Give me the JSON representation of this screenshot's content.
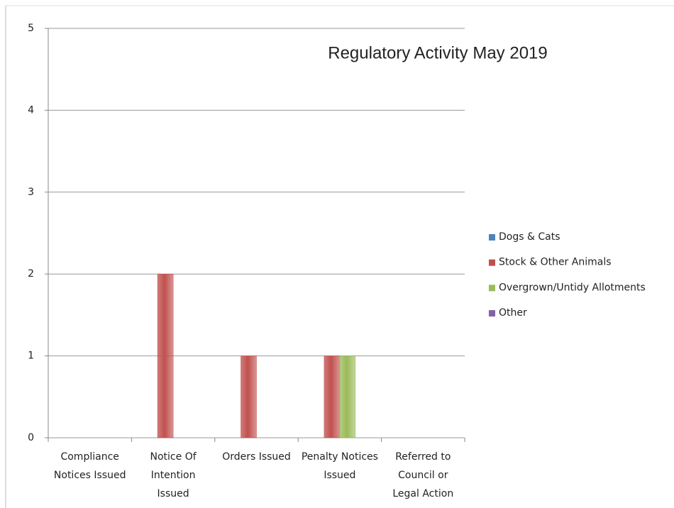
{
  "chart_data": {
    "type": "bar",
    "title": "Regulatory Activity May 2019",
    "categories": [
      "Compliance Notices Issued",
      "Notice Of Intention Issued",
      "Orders Issued",
      "Penalty Notices Issued",
      "Referred to Council or Legal Action"
    ],
    "series": [
      {
        "name": "Dogs & Cats",
        "color": "#4f81bd",
        "values": [
          0,
          0,
          0,
          0,
          0
        ]
      },
      {
        "name": "Stock & Other Animals",
        "color": "#c0504d",
        "values": [
          0,
          2,
          1,
          1,
          0
        ]
      },
      {
        "name": "Overgrown/Untidy Allotments",
        "color": "#9bbb59",
        "values": [
          0,
          0,
          0,
          1,
          0
        ]
      },
      {
        "name": "Other",
        "color": "#8064a2",
        "values": [
          0,
          0,
          0,
          0,
          0
        ]
      }
    ],
    "ylim": [
      0,
      5
    ],
    "yticks": [
      0,
      1,
      2,
      3,
      4,
      5
    ],
    "grid": true,
    "legend": "right"
  }
}
